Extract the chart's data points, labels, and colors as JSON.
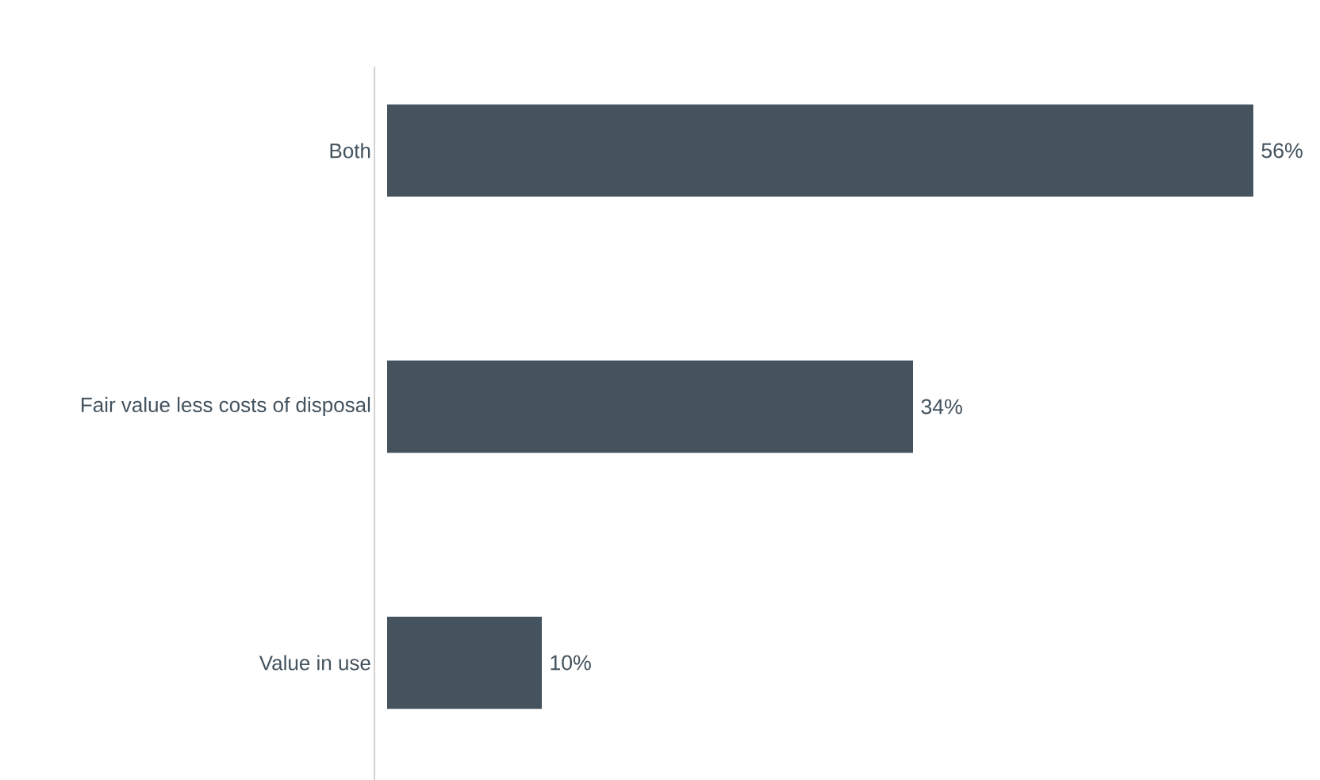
{
  "chart_data": {
    "type": "bar",
    "orientation": "horizontal",
    "categories": [
      "Both",
      "Fair value less costs of disposal",
      "Value in use"
    ],
    "values": [
      56,
      34,
      10
    ],
    "value_labels": [
      "56%",
      "34%",
      "10%"
    ],
    "color": "#44535e"
  }
}
